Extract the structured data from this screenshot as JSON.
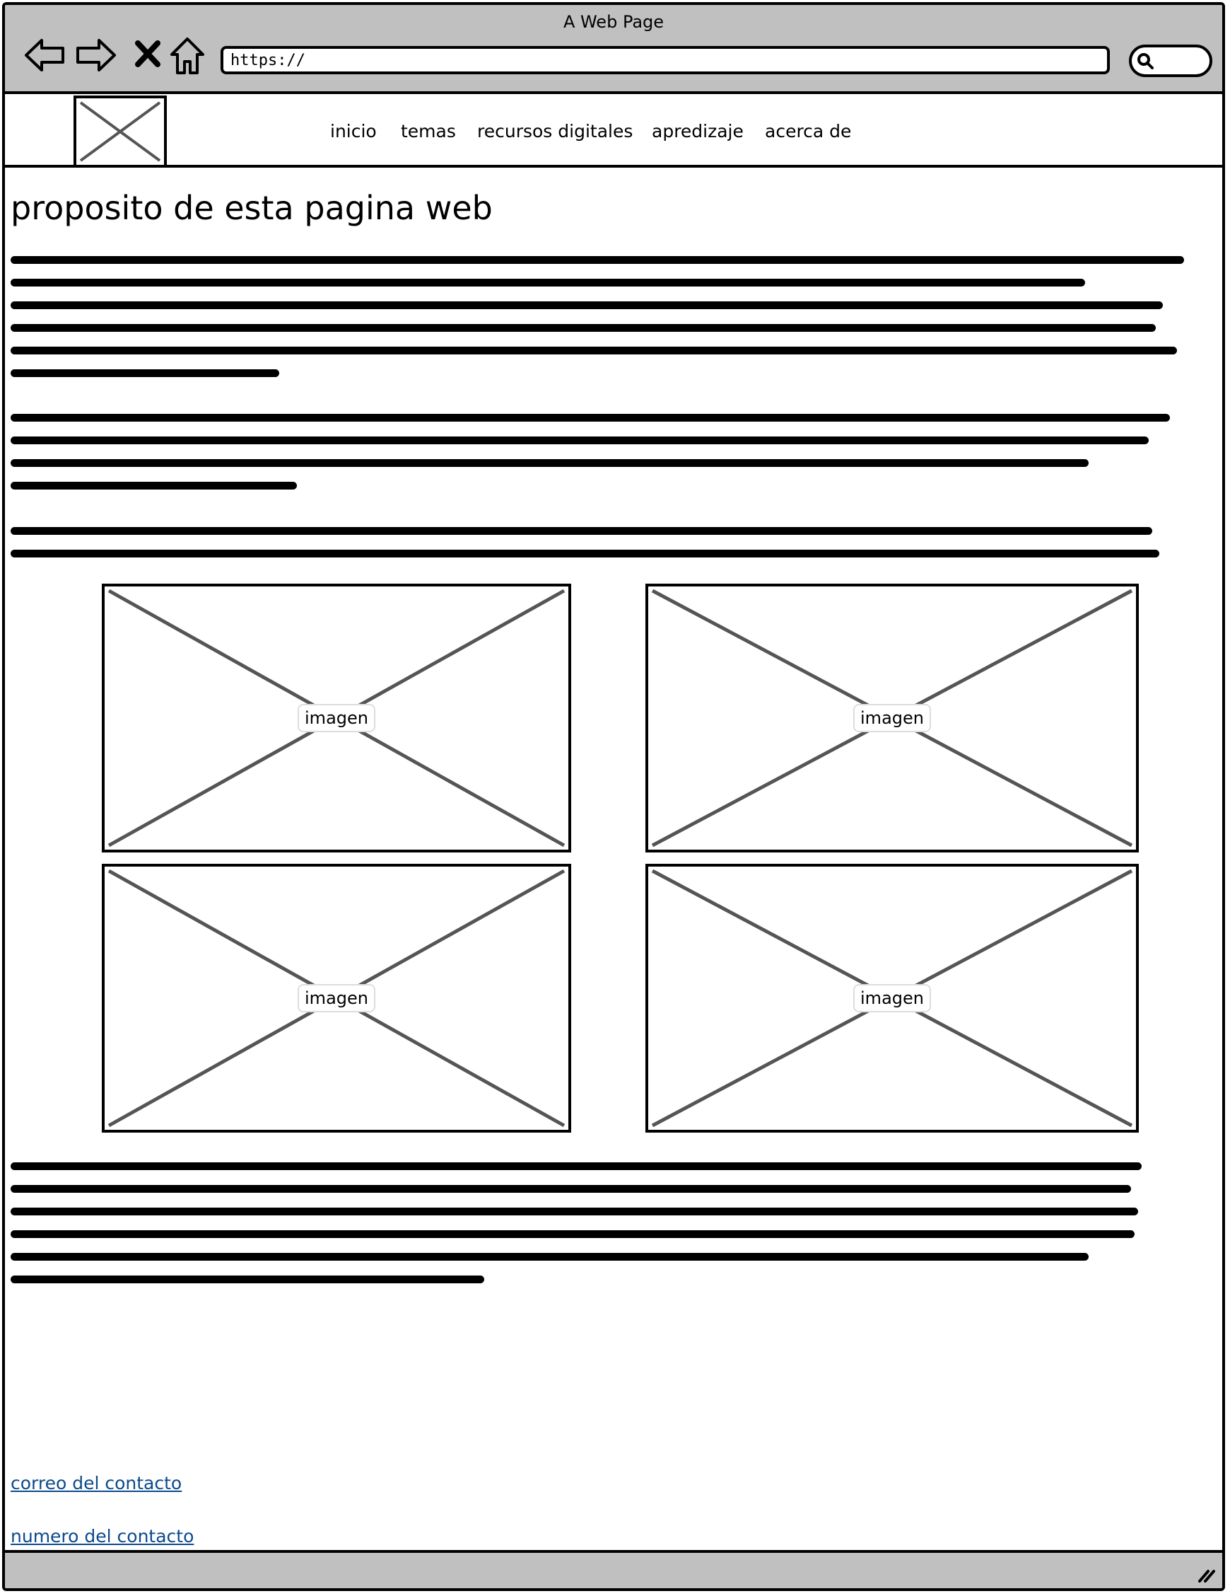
{
  "window": {
    "title": "A Web Page"
  },
  "browser": {
    "url": "https://",
    "icons": [
      "back-arrow-icon",
      "forward-arrow-icon",
      "stop-icon",
      "home-icon",
      "search-icon"
    ]
  },
  "nav": {
    "items": [
      {
        "label": "inicio"
      },
      {
        "label": "temas"
      },
      {
        "label": "recursos digitales"
      },
      {
        "label": "apredizaje"
      },
      {
        "label": "acerca de"
      }
    ]
  },
  "main": {
    "heading": "proposito de esta pagina web",
    "images": [
      {
        "label": "imagen"
      },
      {
        "label": "imagen"
      },
      {
        "label": "imagen"
      },
      {
        "label": "imagen"
      }
    ]
  },
  "footer": {
    "email_link": "correo del contacto",
    "phone_link": "numero del contacto"
  }
}
